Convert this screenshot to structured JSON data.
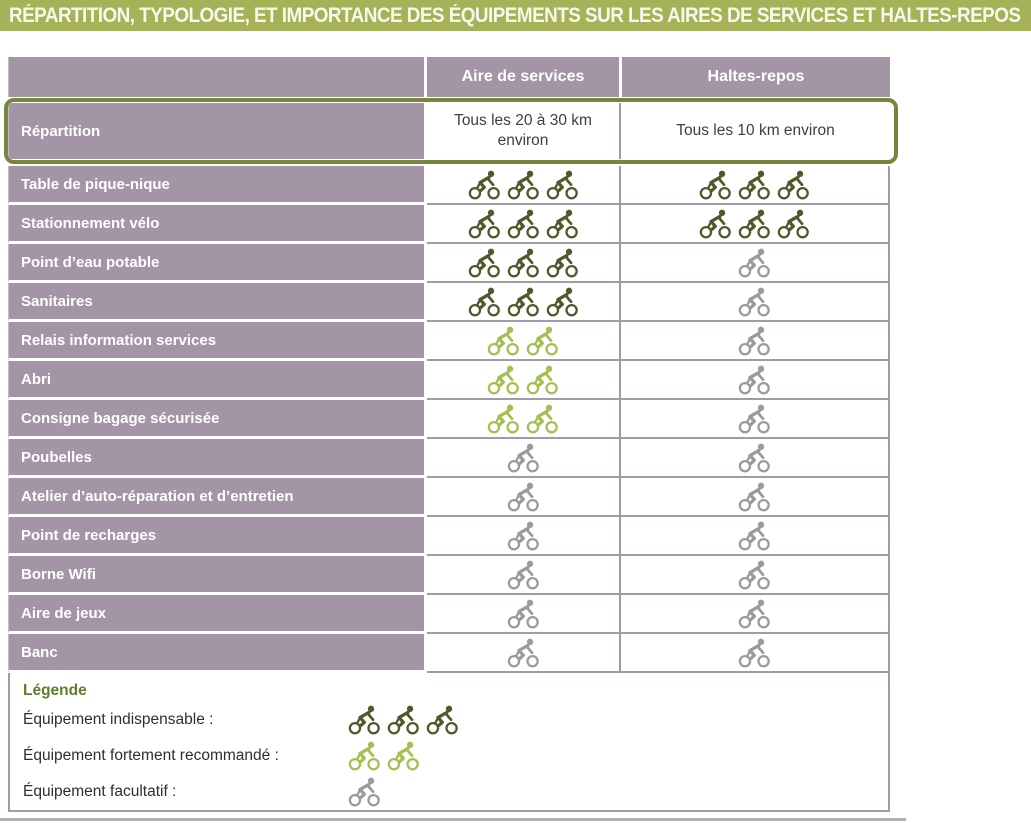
{
  "title": "RÉPARTITION, TYPOLOGIE, ET IMPORTANCE DES ÉQUIPEMENTS SUR LES AIRES DE SERVICES ET HALTES-REPOS",
  "table": {
    "columns": [
      "Aire de services",
      "Haltes-repos"
    ],
    "repartition": {
      "label": "Répartition",
      "aire_de_services": "Tous les 20 à 30 km environ",
      "haltes_repos": "Tous les 10 km environ"
    },
    "rows": [
      {
        "label": "Table de pique-nique",
        "aire": {
          "level": "indispensable",
          "count": 3
        },
        "haltes": {
          "level": "indispensable",
          "count": 3
        }
      },
      {
        "label": "Stationnement vélo",
        "aire": {
          "level": "indispensable",
          "count": 3
        },
        "haltes": {
          "level": "indispensable",
          "count": 3
        }
      },
      {
        "label": "Point d’eau potable",
        "aire": {
          "level": "indispensable",
          "count": 3
        },
        "haltes": {
          "level": "facultatif",
          "count": 1
        }
      },
      {
        "label": "Sanitaires",
        "aire": {
          "level": "indispensable",
          "count": 3
        },
        "haltes": {
          "level": "facultatif",
          "count": 1
        }
      },
      {
        "label": "Relais information services",
        "aire": {
          "level": "fortement_recommande",
          "count": 2
        },
        "haltes": {
          "level": "facultatif",
          "count": 1
        }
      },
      {
        "label": "Abri",
        "aire": {
          "level": "fortement_recommande",
          "count": 2
        },
        "haltes": {
          "level": "facultatif",
          "count": 1
        }
      },
      {
        "label": "Consigne bagage sécurisée",
        "aire": {
          "level": "fortement_recommande",
          "count": 2
        },
        "haltes": {
          "level": "facultatif",
          "count": 1
        }
      },
      {
        "label": "Poubelles",
        "aire": {
          "level": "facultatif",
          "count": 1
        },
        "haltes": {
          "level": "facultatif",
          "count": 1
        }
      },
      {
        "label": "Atelier d’auto-réparation et d’entretien",
        "aire": {
          "level": "facultatif",
          "count": 1
        },
        "haltes": {
          "level": "facultatif",
          "count": 1
        }
      },
      {
        "label": "Point de recharges",
        "aire": {
          "level": "facultatif",
          "count": 1
        },
        "haltes": {
          "level": "facultatif",
          "count": 1
        }
      },
      {
        "label": "Borne Wifi",
        "aire": {
          "level": "facultatif",
          "count": 1
        },
        "haltes": {
          "level": "facultatif",
          "count": 1
        }
      },
      {
        "label": "Aire de jeux",
        "aire": {
          "level": "facultatif",
          "count": 1
        },
        "haltes": {
          "level": "facultatif",
          "count": 1
        }
      },
      {
        "label": "Banc",
        "aire": {
          "level": "facultatif",
          "count": 1
        },
        "haltes": {
          "level": "facultatif",
          "count": 1
        }
      }
    ]
  },
  "legend": {
    "title": "Légende",
    "items": [
      {
        "label": "Équipement indispensable :",
        "level": "indispensable",
        "count": 3
      },
      {
        "label": "Équipement fortement recommandé :",
        "level": "fortement_recommande",
        "count": 2
      },
      {
        "label": "Équipement facultatif :",
        "level": "facultatif",
        "count": 1
      }
    ]
  },
  "icon": {
    "name": "cyclist-icon"
  },
  "colors": {
    "page_bg": "#ffffff",
    "title_bar_bg": "#a6b257",
    "title_text": "#f8f7ee",
    "purple": "#a495a6",
    "line": "#a29aa8",
    "cell_text": "#3f3e3e",
    "highlight_green": "#76863c",
    "legend_green": "#5f7d2c",
    "icon_indispensable": "#4d5b2b",
    "icon_fortement_recommande": "#a3c152",
    "icon_facultatif": "#9b9b9b"
  }
}
